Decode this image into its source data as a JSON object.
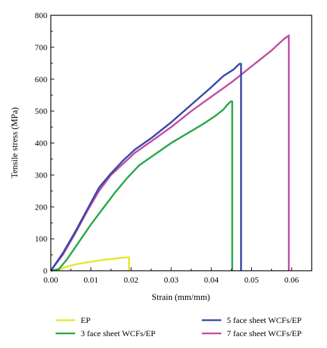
{
  "chart_data": {
    "type": "line",
    "xlabel": "Strain (mm/mm)",
    "ylabel": "Tensile stress (MPa)",
    "xlim": [
      0,
      0.065
    ],
    "ylim": [
      0,
      800
    ],
    "xticks": [
      0.0,
      0.01,
      0.02,
      0.03,
      0.04,
      0.05,
      0.06
    ],
    "xtick_labels": [
      "0.00",
      "0.01",
      "0.02",
      "0.03",
      "0.04",
      "0.05",
      "0.06"
    ],
    "yticks": [
      0,
      100,
      200,
      300,
      400,
      500,
      600,
      700,
      800
    ],
    "ytick_labels": [
      "0",
      "100",
      "200",
      "300",
      "400",
      "500",
      "600",
      "700",
      "800"
    ],
    "grid": false,
    "legend_position": "bottom",
    "series": [
      {
        "name": "EP",
        "color": "#e6e633",
        "points": [
          [
            0.0,
            0
          ],
          [
            0.002,
            3
          ],
          [
            0.004,
            13
          ],
          [
            0.007,
            22
          ],
          [
            0.01,
            28
          ],
          [
            0.013,
            34
          ],
          [
            0.016,
            38
          ],
          [
            0.018,
            41
          ],
          [
            0.0195,
            42
          ],
          [
            0.0195,
            0
          ]
        ]
      },
      {
        "name": "5 face sheet WCFs/EP",
        "color": "#3a49a8",
        "points": [
          [
            0.0,
            0
          ],
          [
            0.003,
            55
          ],
          [
            0.006,
            120
          ],
          [
            0.009,
            190
          ],
          [
            0.012,
            260
          ],
          [
            0.015,
            305
          ],
          [
            0.018,
            345
          ],
          [
            0.021,
            380
          ],
          [
            0.025,
            415
          ],
          [
            0.03,
            465
          ],
          [
            0.035,
            520
          ],
          [
            0.04,
            575
          ],
          [
            0.043,
            610
          ],
          [
            0.0455,
            630
          ],
          [
            0.047,
            648
          ],
          [
            0.0474,
            648
          ],
          [
            0.0474,
            0
          ]
        ]
      },
      {
        "name": "3 face sheet WCFs/EP",
        "color": "#2aa84a",
        "points": [
          [
            0.0,
            0
          ],
          [
            0.002,
            5
          ],
          [
            0.004,
            35
          ],
          [
            0.007,
            90
          ],
          [
            0.01,
            145
          ],
          [
            0.013,
            195
          ],
          [
            0.016,
            245
          ],
          [
            0.019,
            290
          ],
          [
            0.022,
            330
          ],
          [
            0.026,
            365
          ],
          [
            0.03,
            400
          ],
          [
            0.034,
            430
          ],
          [
            0.038,
            460
          ],
          [
            0.041,
            485
          ],
          [
            0.043,
            505
          ],
          [
            0.044,
            520
          ],
          [
            0.0448,
            530
          ],
          [
            0.0452,
            530
          ],
          [
            0.0452,
            0
          ]
        ]
      },
      {
        "name": "7 face sheet WCFs/EP",
        "color": "#c24da6",
        "points": [
          [
            0.0,
            0
          ],
          [
            0.003,
            50
          ],
          [
            0.006,
            115
          ],
          [
            0.009,
            185
          ],
          [
            0.012,
            250
          ],
          [
            0.015,
            300
          ],
          [
            0.018,
            335
          ],
          [
            0.021,
            370
          ],
          [
            0.025,
            405
          ],
          [
            0.03,
            450
          ],
          [
            0.035,
            500
          ],
          [
            0.04,
            545
          ],
          [
            0.045,
            590
          ],
          [
            0.05,
            640
          ],
          [
            0.055,
            690
          ],
          [
            0.058,
            725
          ],
          [
            0.0593,
            737
          ],
          [
            0.0593,
            0
          ]
        ]
      }
    ]
  }
}
